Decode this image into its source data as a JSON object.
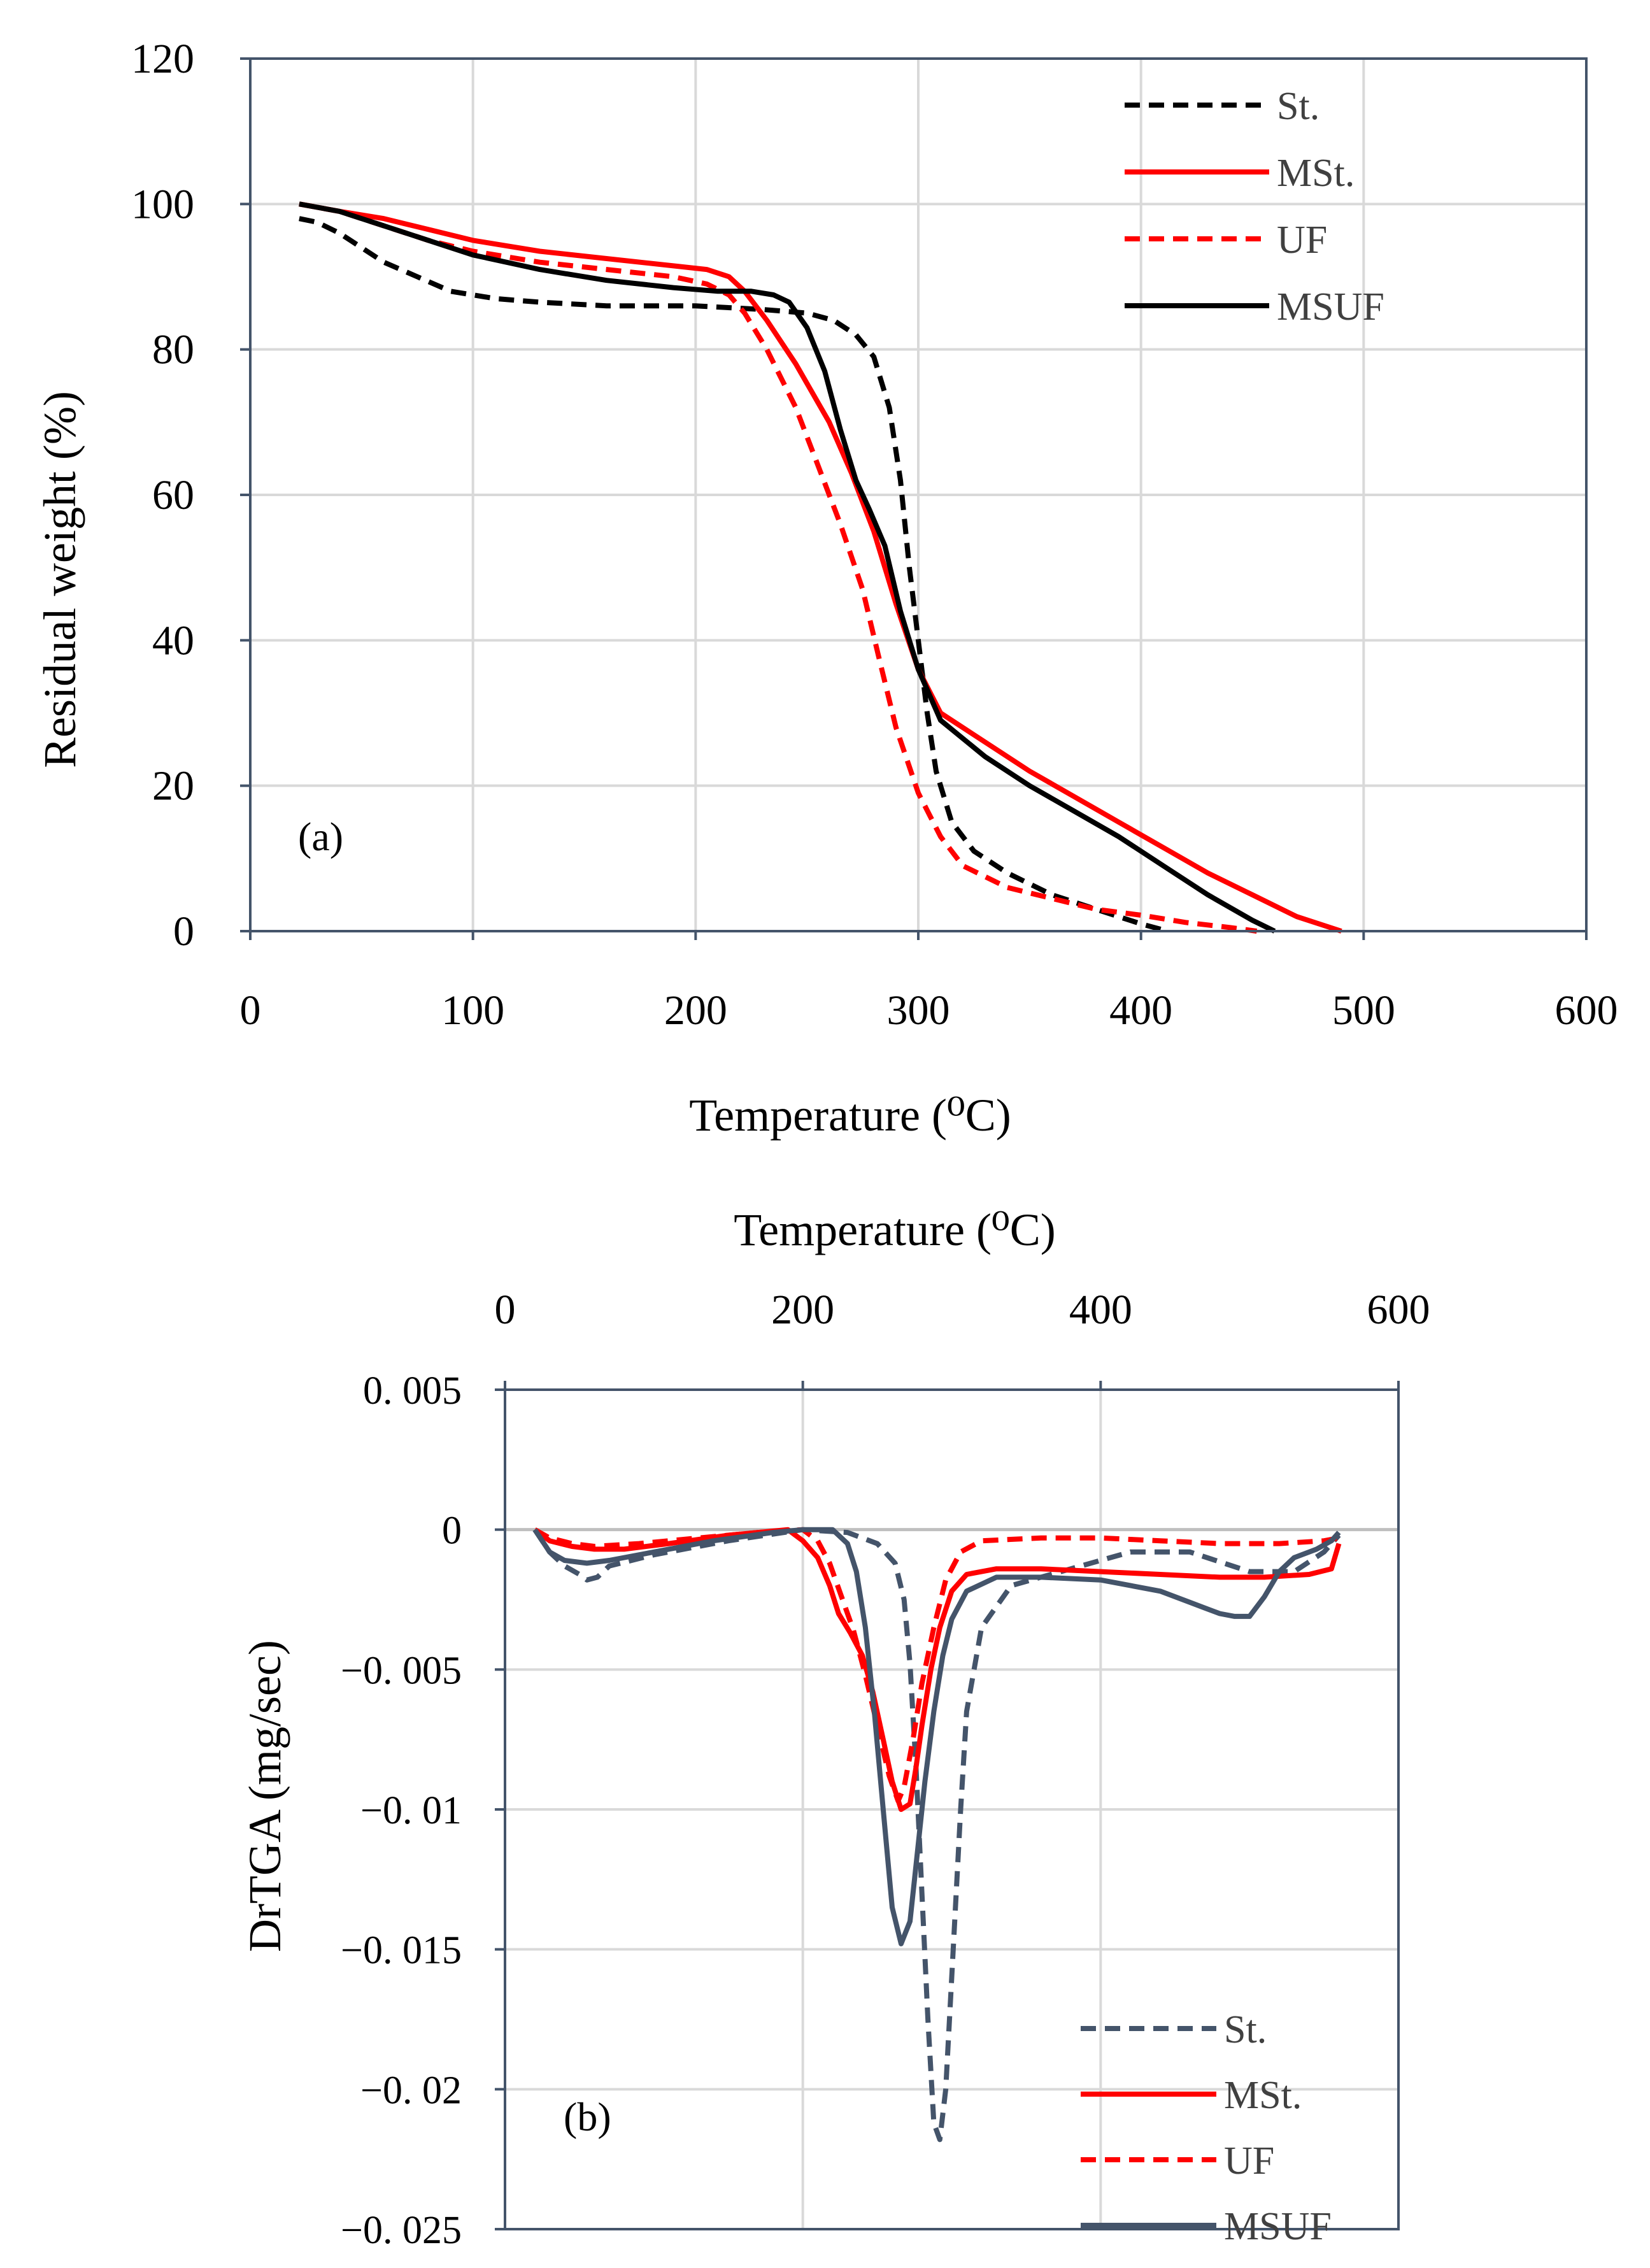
{
  "colors": {
    "black": "#000000",
    "red": "#ff0000",
    "slate": "#44546a",
    "grid": "#d9d9d9",
    "frame": "#44546a",
    "legend_text": "#404040"
  },
  "chart_data": [
    {
      "type": "line",
      "panel_label": "(a)",
      "title": "",
      "xlabel": "Temperature (⁰C)",
      "ylabel": "Residual weight  (%)",
      "xlim": [
        0,
        600
      ],
      "ylim": [
        0,
        120
      ],
      "x_ticks": [
        0,
        100,
        200,
        300,
        400,
        500,
        600
      ],
      "y_ticks": [
        0,
        20,
        40,
        60,
        80,
        100,
        120
      ],
      "grid": true,
      "legend_position": "top-right",
      "series": [
        {
          "name": "St.",
          "color": "#000000",
          "dash": true,
          "x": [
            22,
            30,
            40,
            50,
            60,
            75,
            90,
            110,
            130,
            160,
            200,
            230,
            250,
            262,
            272,
            280,
            287,
            292,
            296,
            300,
            304,
            308,
            315,
            325,
            340,
            360,
            380,
            400,
            412
          ],
          "y": [
            98,
            97.5,
            96,
            94,
            92,
            90,
            88,
            87,
            86.5,
            86,
            86,
            85.5,
            85,
            84,
            82,
            79,
            72,
            62,
            50,
            40,
            30,
            22,
            15,
            11,
            8,
            5,
            3,
            1,
            0
          ]
        },
        {
          "name": "MSt.",
          "color": "#ff0000",
          "dash": false,
          "x": [
            22,
            40,
            60,
            80,
            100,
            130,
            160,
            190,
            205,
            215,
            222,
            232,
            245,
            260,
            270,
            280,
            290,
            300,
            310,
            330,
            350,
            370,
            390,
            410,
            430,
            450,
            470,
            490
          ],
          "y": [
            100,
            99,
            98,
            96.5,
            95,
            93.5,
            92.5,
            91.5,
            91,
            90,
            88,
            84,
            78,
            70,
            63,
            55,
            45,
            36,
            30,
            26,
            22,
            18.5,
            15,
            11.5,
            8,
            5,
            2,
            0
          ]
        },
        {
          "name": "UF",
          "color": "#ff0000",
          "dash": true,
          "x": [
            22,
            40,
            60,
            80,
            100,
            130,
            160,
            190,
            205,
            215,
            222,
            232,
            245,
            255,
            265,
            275,
            282,
            290,
            300,
            310,
            320,
            340,
            360,
            380,
            400,
            420,
            440,
            452
          ],
          "y": [
            100,
            99,
            97,
            95,
            93.5,
            92,
            91,
            90,
            89,
            87.5,
            85,
            80,
            72,
            64,
            56,
            47,
            38,
            28,
            19,
            13,
            9,
            6,
            4.5,
            3,
            2.2,
            1.2,
            0.5,
            0
          ]
        },
        {
          "name": "MSUF",
          "color": "#000000",
          "dash": false,
          "x": [
            22,
            40,
            60,
            80,
            100,
            130,
            160,
            190,
            210,
            225,
            235,
            242,
            250,
            258,
            265,
            272,
            278,
            285,
            292,
            300,
            310,
            330,
            350,
            370,
            390,
            410,
            430,
            450,
            460
          ],
          "y": [
            100,
            99,
            97,
            95,
            93,
            91,
            89.5,
            88.5,
            88,
            88,
            87.5,
            86.5,
            83,
            77,
            69,
            62,
            58,
            53,
            44,
            36,
            29,
            24,
            20,
            16.5,
            13,
            9,
            5,
            1.5,
            0
          ]
        }
      ]
    },
    {
      "type": "line",
      "panel_label": "(b)",
      "title": "",
      "xlabel": "Temperature (⁰C)",
      "xlabel_position": "top",
      "ylabel": "DrTGA (mg/sec)",
      "xlim": [
        0,
        600
      ],
      "ylim": [
        -0.025,
        0.005
      ],
      "x_ticks": [
        0,
        200,
        400,
        600
      ],
      "y_ticks": [
        0.005,
        0,
        -0.005,
        -0.01,
        -0.015,
        -0.02,
        -0.025
      ],
      "y_tick_labels": [
        "0. 005",
        "0",
        "−0. 005",
        "−0. 01",
        "−0. 015",
        "−0. 02",
        "−0. 025"
      ],
      "grid": true,
      "legend_position": "bottom-right",
      "series": [
        {
          "name": "St.",
          "color": "#44546a",
          "dash": true,
          "x": [
            20,
            30,
            40,
            50,
            55,
            62,
            70,
            100,
            150,
            200,
            230,
            250,
            262,
            268,
            272,
            276,
            280,
            284,
            288,
            292,
            296,
            300,
            306,
            310,
            320,
            340,
            380,
            420,
            460,
            500,
            530,
            550,
            560
          ],
          "y": [
            0,
            -0.0008,
            -0.0013,
            -0.0016,
            -0.0018,
            -0.0017,
            -0.0013,
            -0.0009,
            -0.0004,
            0,
            -0.0001,
            -0.0005,
            -0.0012,
            -0.0025,
            -0.0048,
            -0.0085,
            -0.013,
            -0.0175,
            -0.0212,
            -0.0218,
            -0.02,
            -0.016,
            -0.01,
            -0.0065,
            -0.0035,
            -0.002,
            -0.0014,
            -0.0008,
            -0.0008,
            -0.0015,
            -0.0015,
            -0.0008,
            -0.0002
          ]
        },
        {
          "name": "MSt.",
          "color": "#ff0000",
          "dash": false,
          "x": [
            20,
            30,
            45,
            60,
            80,
            110,
            150,
            190,
            200,
            210,
            218,
            224,
            232,
            240,
            247,
            254,
            260,
            266,
            272,
            276,
            280,
            286,
            292,
            300,
            310,
            330,
            360,
            400,
            440,
            480,
            510,
            540,
            555,
            560
          ],
          "y": [
            0,
            -0.0004,
            -0.0006,
            -0.0007,
            -0.0007,
            -0.0005,
            -0.0002,
            0,
            -0.0004,
            -0.001,
            -0.002,
            -0.003,
            -0.0037,
            -0.0045,
            -0.0058,
            -0.0075,
            -0.009,
            -0.01,
            -0.0098,
            -0.0085,
            -0.007,
            -0.005,
            -0.0035,
            -0.0022,
            -0.0016,
            -0.0014,
            -0.0014,
            -0.0015,
            -0.0016,
            -0.0017,
            -0.0017,
            -0.0016,
            -0.0014,
            -0.0005
          ]
        },
        {
          "name": "UF",
          "color": "#ff0000",
          "dash": true,
          "x": [
            20,
            30,
            45,
            60,
            90,
            130,
            170,
            200,
            210,
            218,
            226,
            234,
            242,
            250,
            258,
            264,
            268,
            274,
            280,
            288,
            296,
            306,
            320,
            360,
            400,
            440,
            480,
            520,
            550,
            560
          ],
          "y": [
            0,
            -0.0003,
            -0.0005,
            -0.0006,
            -0.0005,
            -0.0003,
            -0.0001,
            0,
            -0.0004,
            -0.0012,
            -0.0024,
            -0.0036,
            -0.0052,
            -0.007,
            -0.0088,
            -0.0097,
            -0.0092,
            -0.0075,
            -0.0055,
            -0.0035,
            -0.0018,
            -0.0008,
            -0.0004,
            -0.0003,
            -0.0003,
            -0.0004,
            -0.0005,
            -0.0005,
            -0.0004,
            -0.0003
          ]
        },
        {
          "name": "MSUF",
          "color": "#44546a",
          "dash": false,
          "x": [
            20,
            30,
            40,
            55,
            70,
            100,
            140,
            180,
            200,
            220,
            230,
            236,
            242,
            248,
            254,
            260,
            266,
            272,
            276,
            282,
            288,
            294,
            300,
            310,
            330,
            360,
            400,
            440,
            460,
            470,
            480,
            490,
            500,
            510,
            520,
            530,
            545,
            555,
            560
          ],
          "y": [
            0,
            -0.0008,
            -0.0011,
            -0.0012,
            -0.0011,
            -0.0008,
            -0.0004,
            -0.0001,
            0,
            0,
            -0.0005,
            -0.0015,
            -0.0035,
            -0.0065,
            -0.01,
            -0.0135,
            -0.0148,
            -0.014,
            -0.012,
            -0.009,
            -0.0065,
            -0.0045,
            -0.0032,
            -0.0022,
            -0.0017,
            -0.0017,
            -0.0018,
            -0.0022,
            -0.0026,
            -0.0028,
            -0.003,
            -0.0031,
            -0.0031,
            -0.0024,
            -0.0015,
            -0.001,
            -0.0007,
            -0.0004,
            -0.0001
          ]
        }
      ]
    }
  ]
}
